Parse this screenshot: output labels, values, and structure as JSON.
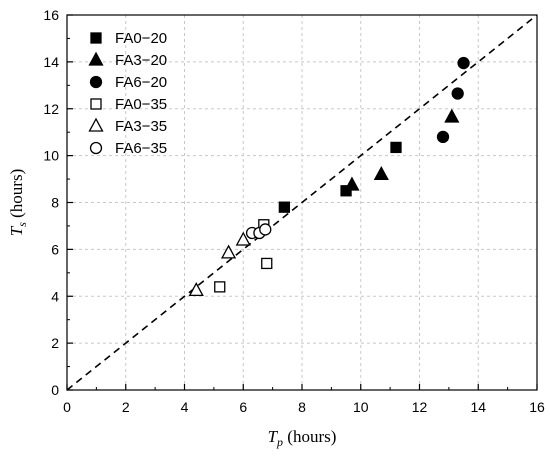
{
  "chart_data": {
    "type": "scatter",
    "xlabel": {
      "var": "T",
      "sub": "p",
      "unit": " (hours)"
    },
    "ylabel": {
      "var": "T",
      "sub": "s",
      "unit": " (hours)"
    },
    "xlim": [
      0,
      16
    ],
    "ylim": [
      0,
      16
    ],
    "xticks": [
      "0",
      "2",
      "4",
      "6",
      "8",
      "10",
      "12",
      "14",
      "16"
    ],
    "yticks": [
      "0",
      "2",
      "4",
      "6",
      "8",
      "10",
      "12",
      "14",
      "16"
    ],
    "grid": true,
    "legend_position": "top-left",
    "reference_line": {
      "style": "dashed",
      "from": [
        0,
        0
      ],
      "to": [
        16,
        16
      ]
    },
    "series": [
      {
        "name": "FA0−20",
        "marker": "square",
        "filled": true,
        "points": [
          [
            7.4,
            7.8
          ],
          [
            9.5,
            8.5
          ],
          [
            11.2,
            10.35
          ]
        ]
      },
      {
        "name": "FA3−20",
        "marker": "triangle",
        "filled": true,
        "points": [
          [
            9.7,
            8.75
          ],
          [
            10.7,
            9.2
          ],
          [
            13.1,
            11.65
          ]
        ]
      },
      {
        "name": "FA6−20",
        "marker": "circle",
        "filled": true,
        "points": [
          [
            12.8,
            10.8
          ],
          [
            13.3,
            12.65
          ],
          [
            13.5,
            13.95
          ]
        ]
      },
      {
        "name": "FA0−35",
        "marker": "square",
        "filled": false,
        "points": [
          [
            5.2,
            4.4
          ],
          [
            6.8,
            5.4
          ],
          [
            6.7,
            7.05
          ]
        ]
      },
      {
        "name": "FA3−35",
        "marker": "triangle",
        "filled": false,
        "points": [
          [
            4.4,
            4.25
          ],
          [
            5.5,
            5.85
          ],
          [
            6.0,
            6.4
          ]
        ]
      },
      {
        "name": "FA6−35",
        "marker": "circle",
        "filled": false,
        "points": [
          [
            6.3,
            6.7
          ],
          [
            6.55,
            6.7
          ],
          [
            6.75,
            6.85
          ]
        ]
      }
    ]
  }
}
